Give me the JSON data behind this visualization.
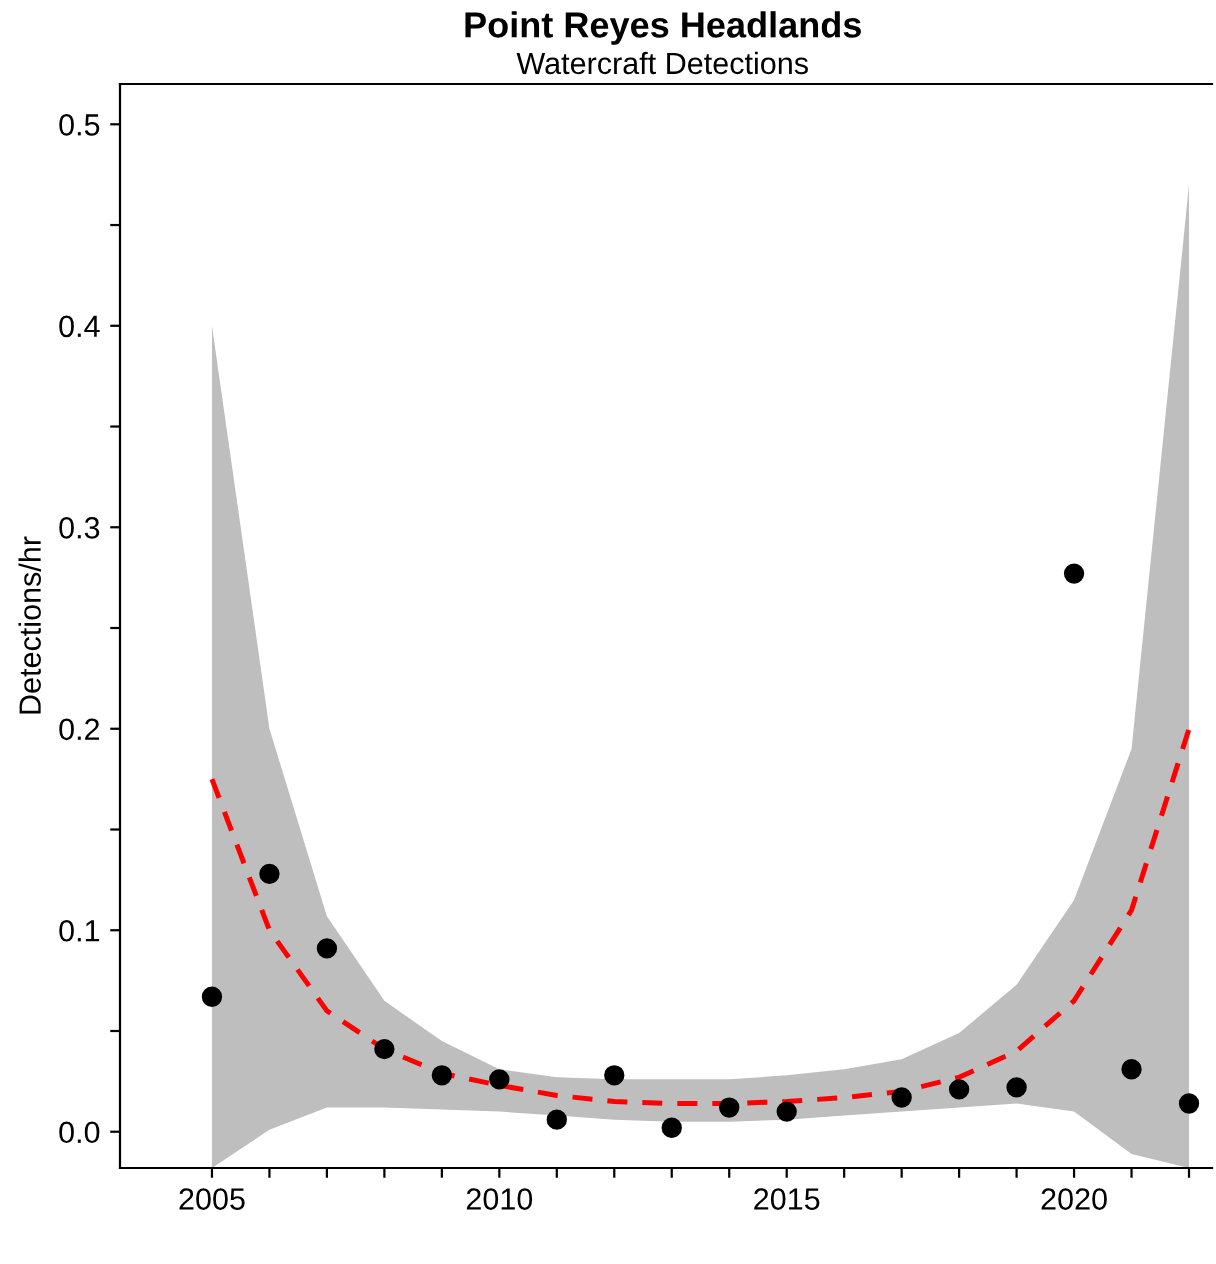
{
  "chart_data": {
    "type": "scatter",
    "title": "Point Reyes Headlands",
    "subtitle": "Watercraft Detections",
    "ylabel": "Detections/hr",
    "xlim": [
      2003.4,
      2022.4
    ],
    "ylim": [
      -0.018,
      0.52
    ],
    "xticks": [
      2005,
      {
        "value": 2006,
        "label": null
      },
      {
        "value": 2007,
        "label": null
      },
      {
        "value": 2008,
        "label": null
      },
      {
        "value": 2009,
        "label": null
      },
      2010,
      {
        "value": 2011,
        "label": null
      },
      {
        "value": 2012,
        "label": null
      },
      {
        "value": 2013,
        "label": null
      },
      {
        "value": 2014,
        "label": null
      },
      2015,
      {
        "value": 2016,
        "label": null
      },
      {
        "value": 2017,
        "label": null
      },
      {
        "value": 2018,
        "label": null
      },
      {
        "value": 2019,
        "label": null
      },
      2020,
      {
        "value": 2021,
        "label": null
      },
      {
        "value": 2022,
        "label": null
      }
    ],
    "yticks": [
      {
        "value": 0,
        "label": "0.0"
      },
      {
        "value": 0.05,
        "label": null
      },
      0.1,
      {
        "value": 0.15,
        "label": null
      },
      0.2,
      {
        "value": 0.25,
        "label": null
      },
      0.3,
      {
        "value": 0.35,
        "label": null
      },
      0.4,
      {
        "value": 0.45,
        "label": null
      },
      0.5
    ],
    "grid": false,
    "series": [
      {
        "type": "line",
        "color": "#ff0000",
        "line_style": "dashed",
        "marker": "none",
        "x": [
          2005,
          2006,
          2007,
          2008,
          2009,
          2010,
          2011,
          2012,
          2013,
          2014,
          2015,
          2016,
          2017,
          2018,
          2019,
          2020,
          2021,
          2022
        ],
        "values": [
          0.175,
          0.1,
          0.06,
          0.041,
          0.029,
          0.023,
          0.018,
          0.015,
          0.014,
          0.014,
          0.015,
          0.017,
          0.02,
          0.027,
          0.04,
          0.065,
          0.11,
          0.2
        ],
        "lower": [
          -0.018,
          0.001,
          0.012,
          0.012,
          0.011,
          0.01,
          0.008,
          0.006,
          0.005,
          0.005,
          0.006,
          0.008,
          0.01,
          0.012,
          0.014,
          0.01,
          -0.011,
          -0.018
        ],
        "upper": [
          0.4,
          0.2,
          0.107,
          0.065,
          0.045,
          0.031,
          0.027,
          0.026,
          0.026,
          0.026,
          0.028,
          0.031,
          0.036,
          0.049,
          0.073,
          0.115,
          0.19,
          0.47
        ]
      },
      {
        "color": "#000000",
        "marker": "circle",
        "x": [
          2005,
          2006,
          2007,
          2008,
          2009,
          2010,
          2011,
          2012,
          2013,
          2014,
          2015,
          2017,
          2018,
          2019,
          2020,
          2021,
          2022
        ],
        "values": [
          0.067,
          0.128,
          0.091,
          0.041,
          0.028,
          0.026,
          0.006,
          0.028,
          0.002,
          0.012,
          0.01,
          0.017,
          0.021,
          0.022,
          0.277,
          0.031,
          0.014
        ]
      }
    ]
  }
}
